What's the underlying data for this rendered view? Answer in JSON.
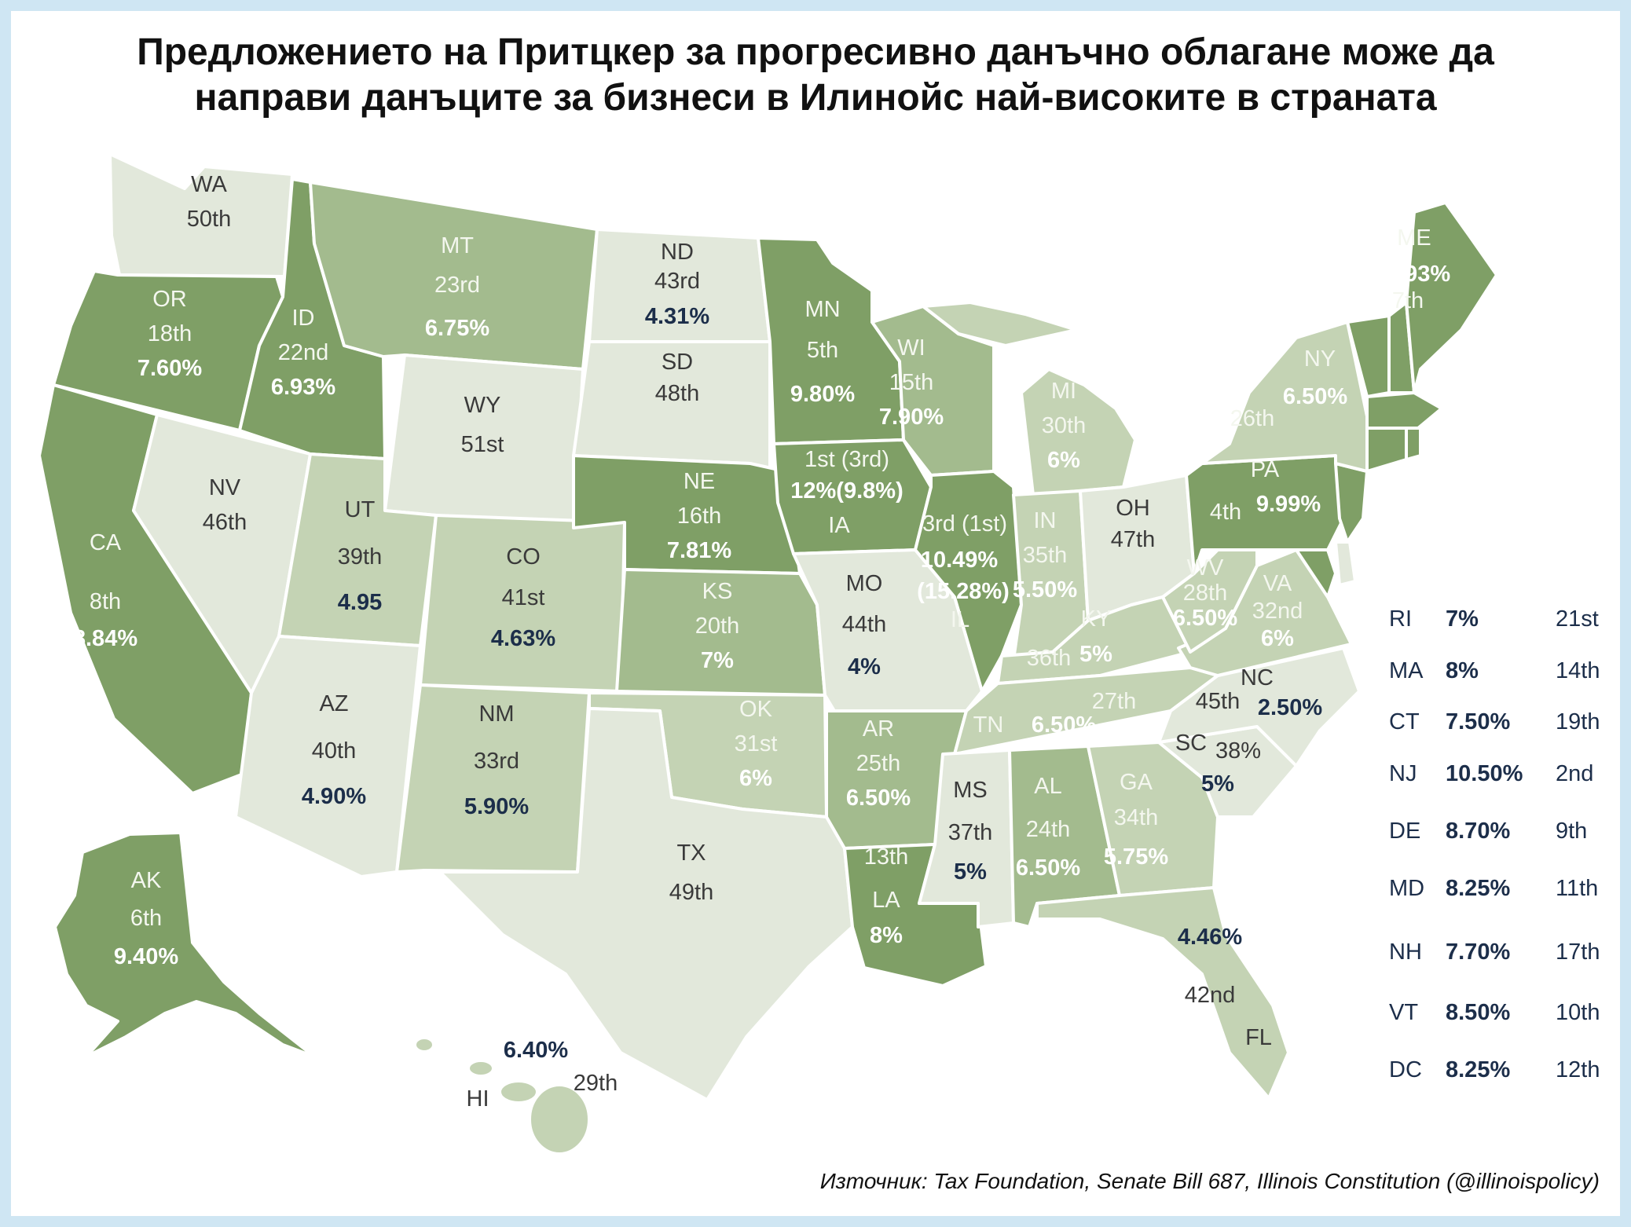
{
  "title": {
    "line1": "Предложението на Притцкер за прогресивно данъчно облагане може да",
    "line2": "направи данъците за бизнеси в Илинойс най-високите в страната"
  },
  "source": "Източник: Tax Foundation, Senate Bill 687, Illinois Constitution (@illinoispolicy)",
  "colors": {
    "tier1": "#7f9f66",
    "tier2": "#a3bb8e",
    "tier3": "#c4d3b4",
    "tier4": "#e2e8db",
    "border": "#ffffff",
    "dark_text": "#1c2e4a",
    "light_text": "#ffffff"
  },
  "states": {
    "WA": {
      "code": "WA",
      "rank": "50th",
      "rate": ""
    },
    "OR": {
      "code": "OR",
      "rank": "18th",
      "rate": "7.60%"
    },
    "CA": {
      "code": "CA",
      "rank": "8th",
      "rate": "8.84%"
    },
    "NV": {
      "code": "NV",
      "rank": "46th",
      "rate": ""
    },
    "ID": {
      "code": "ID",
      "rank": "22nd",
      "rate": "6.93%"
    },
    "MT": {
      "code": "MT",
      "rank": "23rd",
      "rate": "6.75%"
    },
    "WY": {
      "code": "WY",
      "rank": "51st",
      "rate": ""
    },
    "UT": {
      "code": "UT",
      "rank": "39th",
      "rate": "4.95"
    },
    "AZ": {
      "code": "AZ",
      "rank": "40th",
      "rate": "4.90%"
    },
    "CO": {
      "code": "CO",
      "rank": "41st",
      "rate": "4.63%"
    },
    "NM": {
      "code": "NM",
      "rank": "33rd",
      "rate": "5.90%"
    },
    "ND": {
      "code": "ND",
      "rank": "43rd",
      "rate": "4.31%"
    },
    "SD": {
      "code": "SD",
      "rank": "48th",
      "rate": ""
    },
    "NE": {
      "code": "NE",
      "rank": "16th",
      "rate": "7.81%"
    },
    "KS": {
      "code": "KS",
      "rank": "20th",
      "rate": "7%"
    },
    "OK": {
      "code": "OK",
      "rank": "31st",
      "rate": "6%"
    },
    "TX": {
      "code": "TX",
      "rank": "49th",
      "rate": ""
    },
    "MN": {
      "code": "MN",
      "rank": "5th",
      "rate": "9.80%"
    },
    "IA": {
      "code": "IA",
      "rank": "1st (3rd)",
      "rate": "12%(9.8%)"
    },
    "MO": {
      "code": "MO",
      "rank": "44th",
      "rate": "4%"
    },
    "AR": {
      "code": "AR",
      "rank": "25th",
      "rate": "6.50%"
    },
    "LA": {
      "code": "LA",
      "rank": "13th",
      "rate": "8%"
    },
    "WI": {
      "code": "WI",
      "rank": "15th",
      "rate": "7.90%"
    },
    "IL": {
      "code": "IL",
      "rank": "3rd (1st)",
      "rate": "10.49%",
      "rate2": "(15.28%)"
    },
    "MI": {
      "code": "MI",
      "rank": "30th",
      "rate": "6%"
    },
    "IN": {
      "code": "IN",
      "rank": "35th",
      "rate": "5.50%"
    },
    "OH": {
      "code": "OH",
      "rank": "47th",
      "rate": ""
    },
    "KY": {
      "code": "KY",
      "rank": "36th",
      "rate": "5%"
    },
    "TN": {
      "code": "TN",
      "rank": "27th",
      "rate": "6.50%"
    },
    "MS": {
      "code": "MS",
      "rank": "37th",
      "rate": "5%"
    },
    "AL": {
      "code": "AL",
      "rank": "24th",
      "rate": "6.50%"
    },
    "GA": {
      "code": "GA",
      "rank": "34th",
      "rate": "5.75%"
    },
    "FL": {
      "code": "FL",
      "rank": "42nd",
      "rate": "4.46%"
    },
    "SC": {
      "code": "SC",
      "rank": "38%",
      "rate": "5%"
    },
    "NC": {
      "code": "NC",
      "rank": "45th",
      "rate": "2.50%"
    },
    "VA": {
      "code": "VA",
      "rank": "32nd",
      "rate": "6%"
    },
    "WV": {
      "code": "WV",
      "rank": "28th",
      "rate": "6.50%"
    },
    "PA": {
      "code": "PA",
      "rank": "4th",
      "rate": "9.99%"
    },
    "NY": {
      "code": "NY",
      "rank": "26th",
      "rate": "6.50%"
    },
    "ME": {
      "code": "ME",
      "rank": "7th",
      "rate": "8.93%"
    },
    "AK": {
      "code": "AK",
      "rank": "6th",
      "rate": "9.40%"
    },
    "HI": {
      "code": "HI",
      "rank": "29th",
      "rate": "6.40%"
    }
  },
  "side_table": [
    {
      "code": "RI",
      "rate": "7%",
      "rank": "21st"
    },
    {
      "code": "MA",
      "rate": "8%",
      "rank": "14th"
    },
    {
      "code": "CT",
      "rate": "7.50%",
      "rank": "19th"
    },
    {
      "code": "NJ",
      "rate": "10.50%",
      "rank": "2nd"
    },
    {
      "code": "DE",
      "rate": "8.70%",
      "rank": "9th"
    },
    {
      "code": "MD",
      "rate": "8.25%",
      "rank": "11th"
    },
    {
      "code": "NH",
      "rate": "7.70%",
      "rank": "17th"
    },
    {
      "code": "VT",
      "rate": "8.50%",
      "rank": "10th"
    },
    {
      "code": "DC",
      "rate": "8.25%",
      "rank": "12th"
    }
  ]
}
